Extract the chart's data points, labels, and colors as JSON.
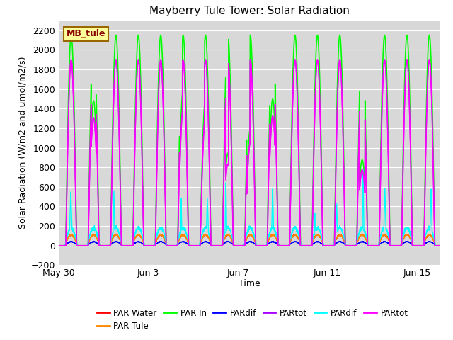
{
  "title": "Mayberry Tule Tower: Solar Radiation",
  "ylabel": "Solar Radiation (W/m2 and umol/m2/s)",
  "xlabel": "Time",
  "ylim": [
    -200,
    2300
  ],
  "yticks": [
    -200,
    0,
    200,
    400,
    600,
    800,
    1000,
    1200,
    1400,
    1600,
    1800,
    2000,
    2200
  ],
  "bg_color": "#d8d8d8",
  "legend_label": "MB_tule",
  "legend_box_color": "#ffff99",
  "legend_box_edge": "#996600",
  "x_tick_labels": [
    "May 30",
    "Jun 3",
    "Jun 7",
    "Jun 11",
    "Jun 15"
  ],
  "x_tick_positions": [
    0,
    4,
    8,
    12,
    16
  ],
  "series_colors": [
    "#ff0000",
    "#ff8800",
    "#00ff00",
    "#0000ff",
    "#aa00ff",
    "#00ffff",
    "#ff00ff"
  ],
  "series_names": [
    "PAR Water",
    "PAR Tule",
    "PAR In",
    "PARdif",
    "PARtot",
    "PARdif",
    "PARtot"
  ],
  "n_days": 17,
  "points_per_day": 288
}
